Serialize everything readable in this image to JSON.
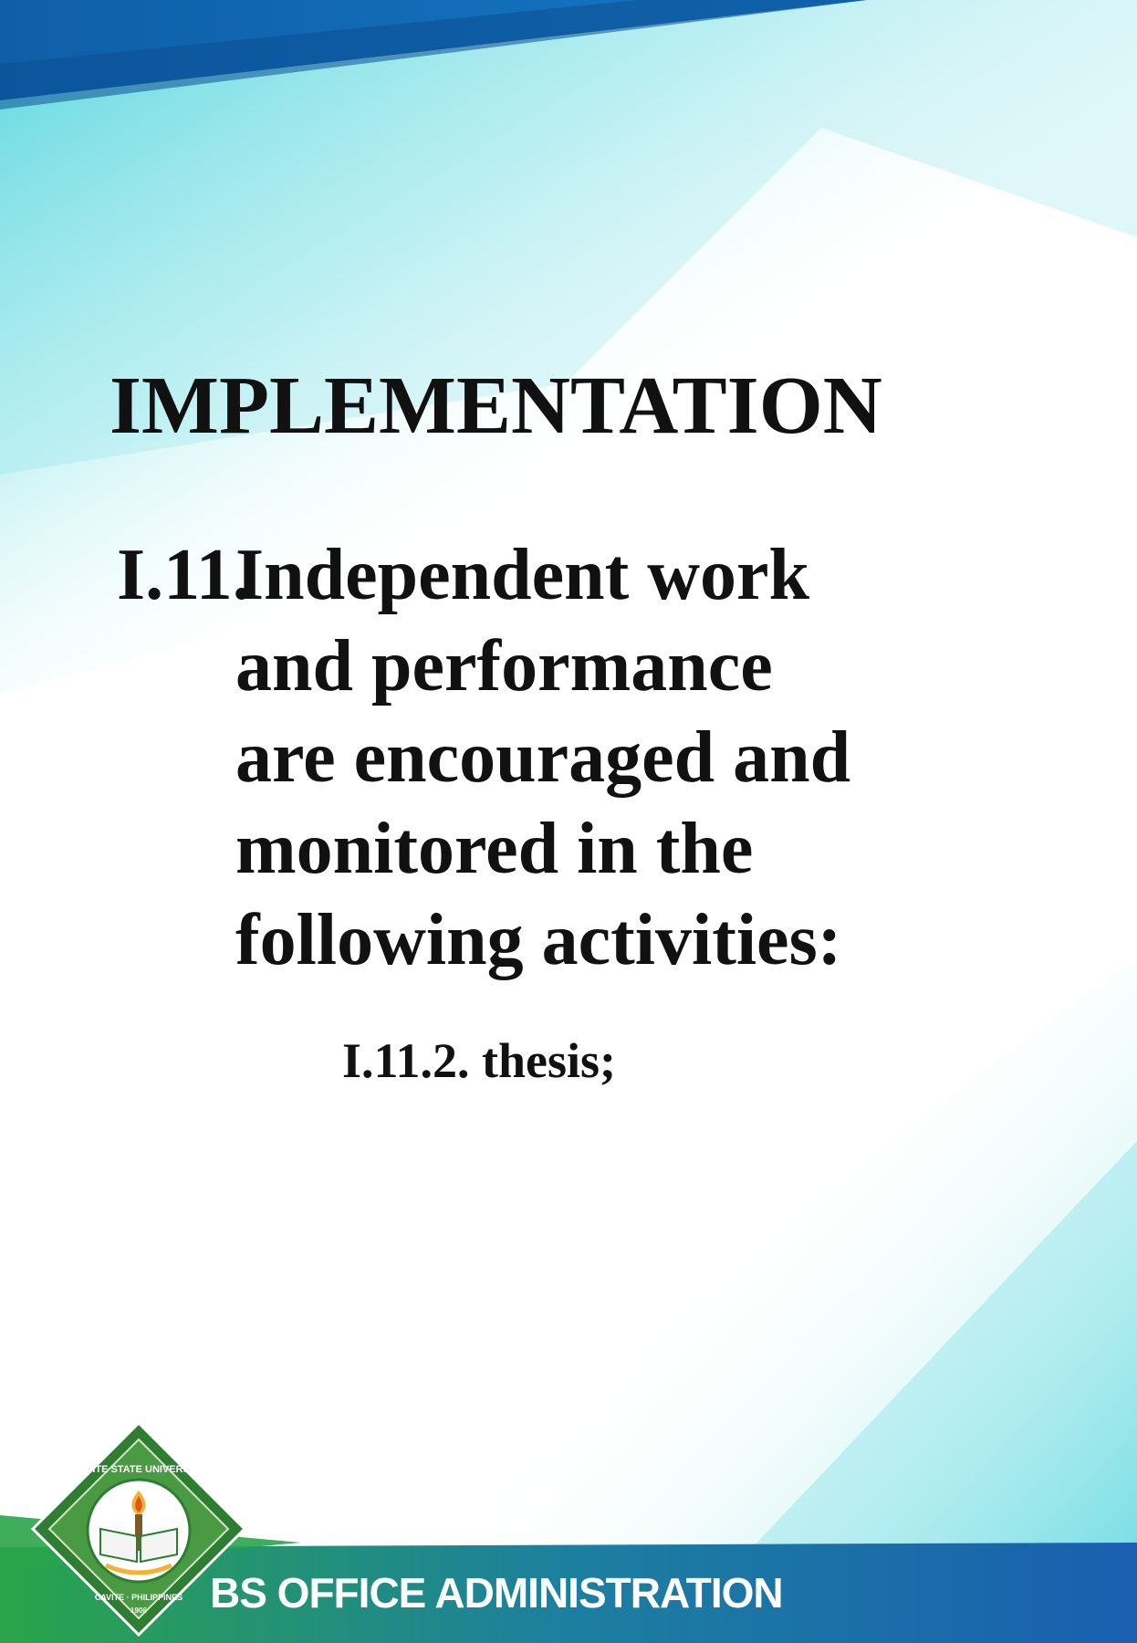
{
  "colors": {
    "top_band": "#1679c4",
    "top_band_dark": "#0f5ea8",
    "cyan_wash": "#3fd0d8",
    "bottom_band": "#1a5fb0",
    "footer_green": "#2aa44a",
    "seal_green": "#3c8a3a",
    "seal_gold": "#f2b233",
    "text_dark": "#111111"
  },
  "slide": {
    "title": "IMPLEMENTATION",
    "item": {
      "number": "I.11.",
      "lines": [
        "Independent work",
        "and performance",
        "are encouraged and",
        "monitored in the",
        "following activities:"
      ]
    },
    "sub_item": "I.11.2. thesis;"
  },
  "footer": {
    "label": "BS OFFICE ADMINISTRATION",
    "logo": {
      "name": "university-seal",
      "text_top": "CAVITE STATE UNIVERSITY",
      "text_bottom": "CAVITE · PHILIPPINES",
      "year": "1906"
    }
  }
}
